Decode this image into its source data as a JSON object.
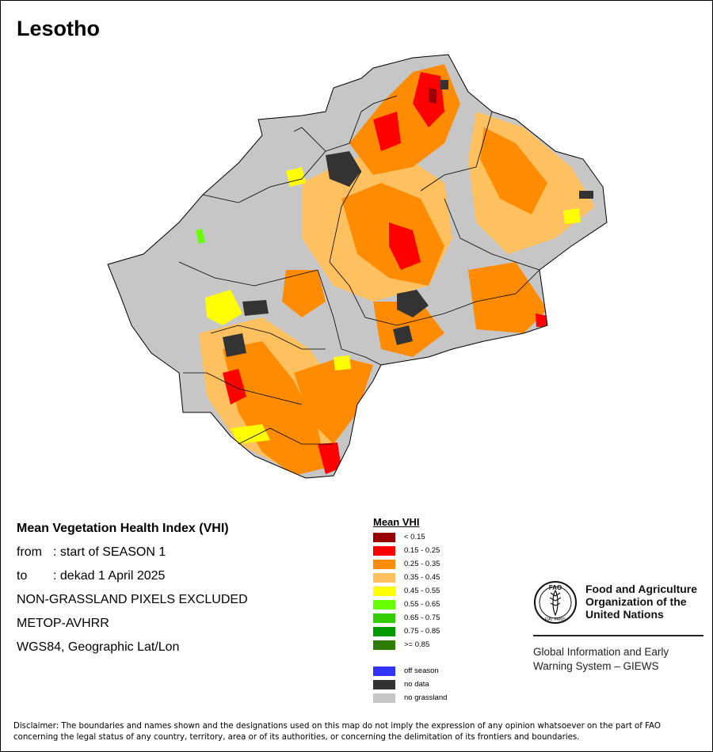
{
  "map": {
    "country": "Lesotho",
    "colors": {
      "land": "#c6c6c6",
      "border": "#000000",
      "vhi_lt_015": "#9b0000",
      "vhi_015_025": "#ff0000",
      "vhi_025_035": "#ff8c00",
      "vhi_035_045": "#ffc060",
      "vhi_045_055": "#ffff00",
      "vhi_055_065": "#66ff00",
      "no_data": "#333333"
    }
  },
  "info": {
    "heading": "Mean Vegetation Health Index (VHI)",
    "from_label": "from",
    "from_value": ": start of SEASON 1",
    "to_label": "to",
    "to_value": ": dekad 1 April 2025",
    "note": "NON-GRASSLAND PIXELS EXCLUDED",
    "sensor": "METOP-AVHRR",
    "projection": "WGS84, Geographic Lat/Lon"
  },
  "legend": {
    "title": "Mean VHI",
    "classes": [
      {
        "label": "< 0.15",
        "color": "#9b0000"
      },
      {
        "label": "0.15 - 0.25",
        "color": "#ff0000"
      },
      {
        "label": "0.25 - 0.35",
        "color": "#ff8c00"
      },
      {
        "label": "0.35 - 0.45",
        "color": "#ffc060"
      },
      {
        "label": "0.45 - 0.55",
        "color": "#ffff00"
      },
      {
        "label": "0.55 - 0.65",
        "color": "#66ff00"
      },
      {
        "label": "0.65 - 0.75",
        "color": "#33cc00"
      },
      {
        "label": "0.75 - 0.85",
        "color": "#009900"
      },
      {
        "label": ">= 0.85",
        "color": "#2e7d00"
      }
    ],
    "extra": [
      {
        "label": "off season",
        "color": "#3333ff"
      },
      {
        "label": "no data",
        "color": "#333333"
      },
      {
        "label": "no grassland",
        "color": "#c6c6c6"
      }
    ]
  },
  "logo": {
    "icon": "fao-logo-icon",
    "letters": "FAO",
    "motto": "FIAT PANIS",
    "org_line1": "Food and Agriculture",
    "org_line2": "Organization of the",
    "org_line3": "United Nations",
    "giews_line1": "Global Information and Early",
    "giews_line2": "Warning System – GIEWS"
  },
  "disclaimer": "Disclaimer: The boundaries and names shown and the designations used on this map do not imply the expression of any opinion whatsoever on the part of FAO concerning the legal status of any country, territory, area or of its authorities, or concerning the delimitation of its frontiers and boundaries."
}
